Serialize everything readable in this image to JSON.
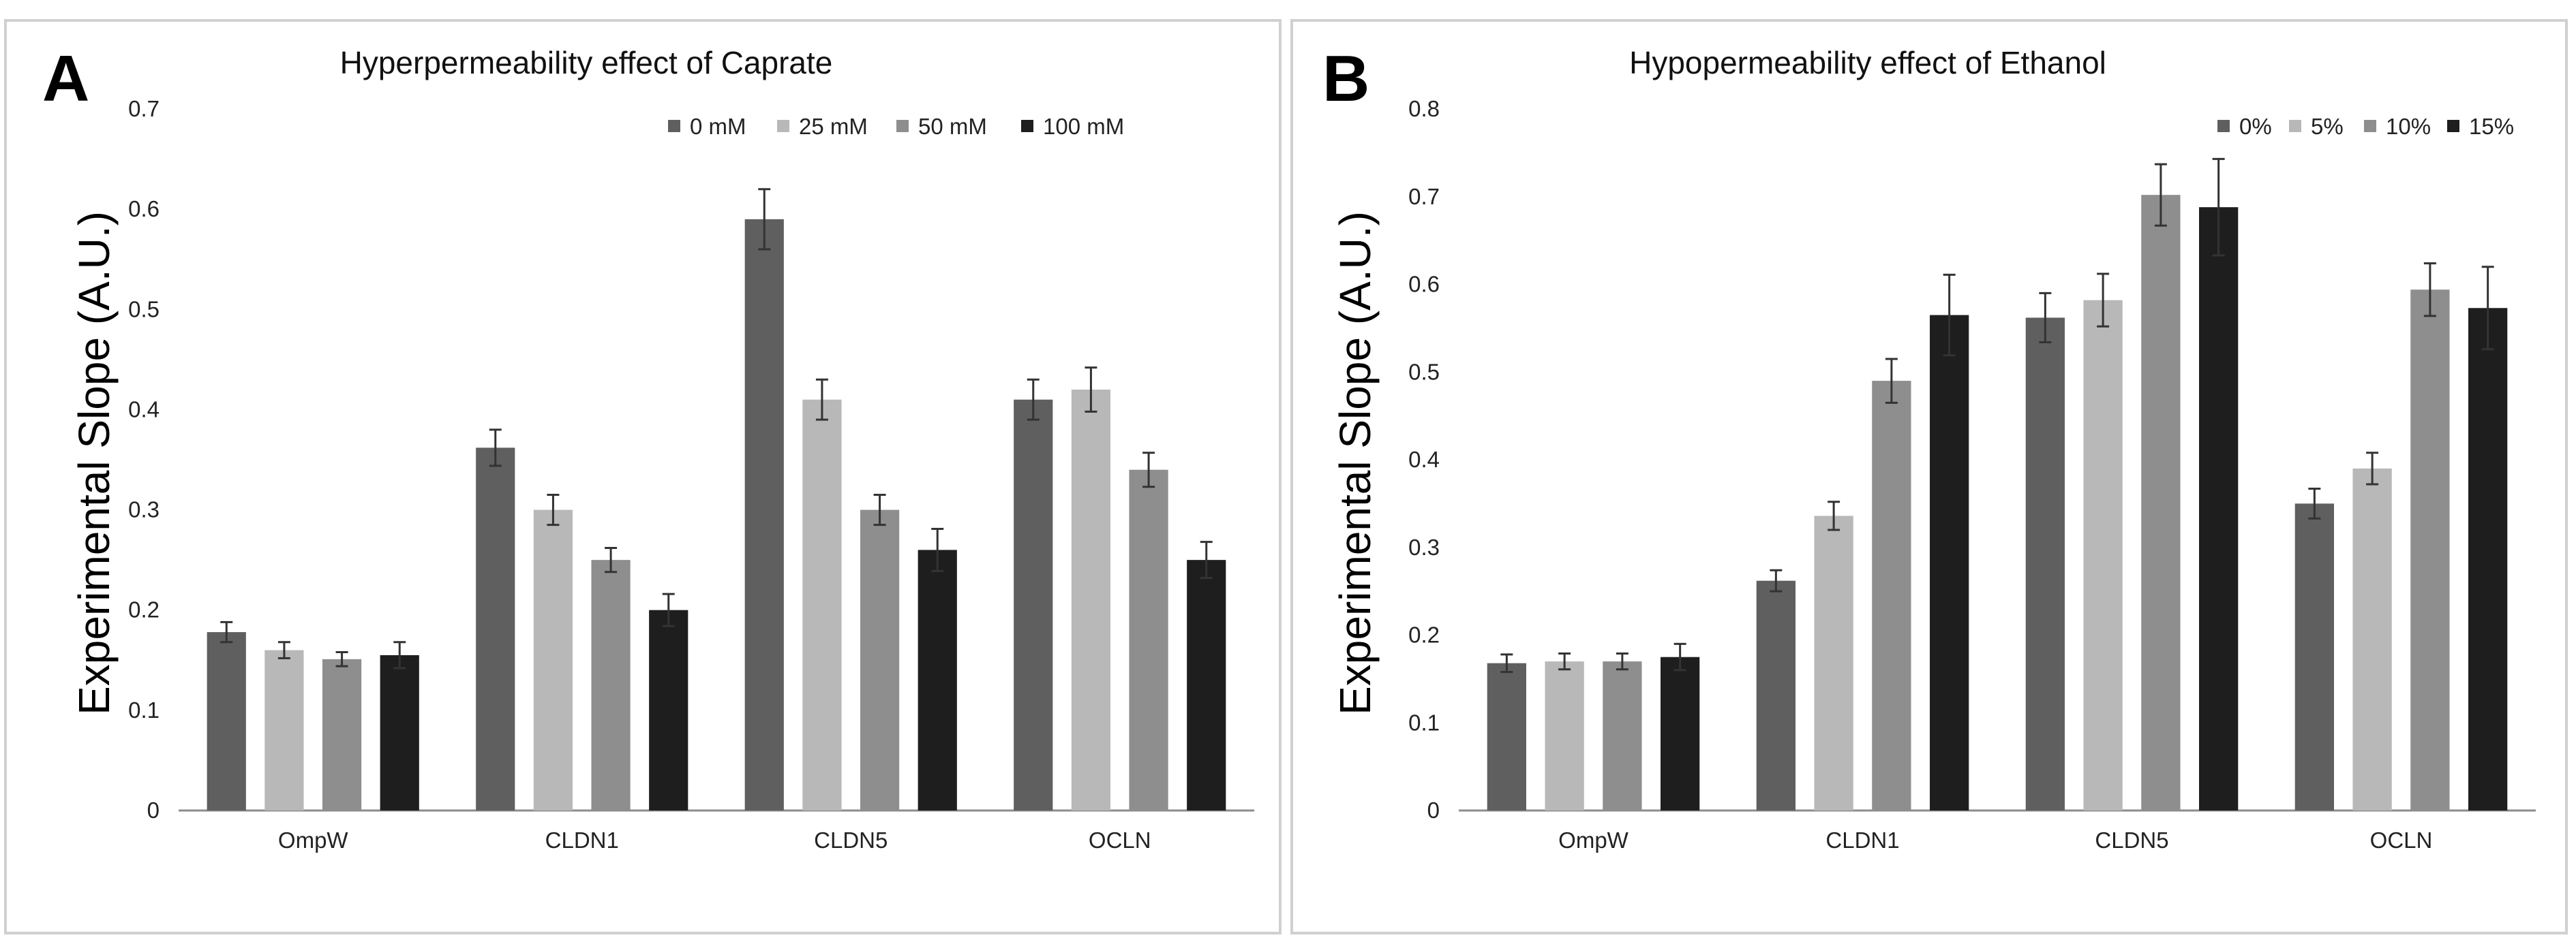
{
  "chart_data": [
    {
      "panel": "A",
      "type": "bar",
      "title": "Hyperpermeability effect of Caprate",
      "xlabel": "",
      "ylabel": "Experimental Slope (A.U.)",
      "ylim": [
        0,
        0.7
      ],
      "yticks": [
        "0",
        "0.1",
        "0.2",
        "0.3",
        "0.4",
        "0.5",
        "0.6",
        "0.7"
      ],
      "legend_position": "top-right",
      "categories": [
        "OmpW",
        "CLDN1",
        "CLDN5",
        "OCLN"
      ],
      "series": [
        {
          "name": "0 mM",
          "color": "#5f5f5f",
          "values": [
            0.178,
            0.362,
            0.59,
            0.41
          ],
          "errors": [
            0.01,
            0.018,
            0.03,
            0.02
          ]
        },
        {
          "name": "25 mM",
          "color": "#b8b8b8",
          "values": [
            0.16,
            0.3,
            0.41,
            0.42
          ],
          "errors": [
            0.008,
            0.015,
            0.02,
            0.022
          ]
        },
        {
          "name": "50 mM",
          "color": "#8e8e8e",
          "values": [
            0.151,
            0.25,
            0.3,
            0.34
          ],
          "errors": [
            0.007,
            0.012,
            0.015,
            0.017
          ]
        },
        {
          "name": "100 mM",
          "color": "#1e1e1e",
          "values": [
            0.155,
            0.2,
            0.26,
            0.25
          ],
          "errors": [
            0.013,
            0.016,
            0.021,
            0.018
          ]
        }
      ]
    },
    {
      "panel": "B",
      "type": "bar",
      "title": "Hypopermeability effect of Ethanol",
      "xlabel": "",
      "ylabel": "Experimental Slope (A.U.)",
      "ylim": [
        0,
        0.8
      ],
      "yticks": [
        "0",
        "0.1",
        "0.2",
        "0.3",
        "0.4",
        "0.5",
        "0.6",
        "0.7",
        "0.8"
      ],
      "legend_position": "top-right",
      "categories": [
        "OmpW",
        "CLDN1",
        "CLDN5",
        "OCLN"
      ],
      "series": [
        {
          "name": "0%",
          "color": "#5f5f5f",
          "values": [
            0.168,
            0.262,
            0.562,
            0.35
          ],
          "errors": [
            0.01,
            0.012,
            0.028,
            0.017
          ]
        },
        {
          "name": "5%",
          "color": "#b8b8b8",
          "values": [
            0.17,
            0.336,
            0.582,
            0.39
          ],
          "errors": [
            0.009,
            0.016,
            0.03,
            0.018
          ]
        },
        {
          "name": "10%",
          "color": "#8e8e8e",
          "values": [
            0.17,
            0.49,
            0.702,
            0.594
          ],
          "errors": [
            0.009,
            0.025,
            0.035,
            0.03
          ]
        },
        {
          "name": "15%",
          "color": "#1e1e1e",
          "values": [
            0.175,
            0.565,
            0.688,
            0.573
          ],
          "errors": [
            0.015,
            0.046,
            0.055,
            0.047
          ]
        }
      ]
    }
  ]
}
